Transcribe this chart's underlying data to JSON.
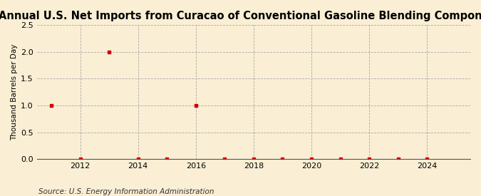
{
  "title": "Annual U.S. Net Imports from Curacao of Conventional Gasoline Blending Components",
  "ylabel": "Thousand Barrels per Day",
  "source": "Source: U.S. Energy Information Administration",
  "background_color": "#faefd4",
  "plot_bg_color": "#faefd4",
  "x_data": [
    2011,
    2012,
    2013,
    2014,
    2015,
    2016,
    2017,
    2018,
    2019,
    2020,
    2021,
    2022,
    2023,
    2024
  ],
  "y_data": [
    1.0,
    0.0,
    2.0,
    0.0,
    0.0,
    1.0,
    0.0,
    0.0,
    0.0,
    0.0,
    0.0,
    0.0,
    0.0,
    0.0
  ],
  "marker_color": "#cc0000",
  "marker": "s",
  "marker_size": 3.5,
  "xlim": [
    2010.5,
    2025.5
  ],
  "ylim": [
    0.0,
    2.5
  ],
  "xticks": [
    2012,
    2014,
    2016,
    2018,
    2020,
    2022,
    2024
  ],
  "yticks": [
    0.0,
    0.5,
    1.0,
    1.5,
    2.0,
    2.5
  ],
  "grid_color": "#aaaaaa",
  "grid_linestyle": "--",
  "grid_linewidth": 0.6,
  "title_fontsize": 10.5,
  "ylabel_fontsize": 7.5,
  "tick_fontsize": 8,
  "source_fontsize": 7.5
}
